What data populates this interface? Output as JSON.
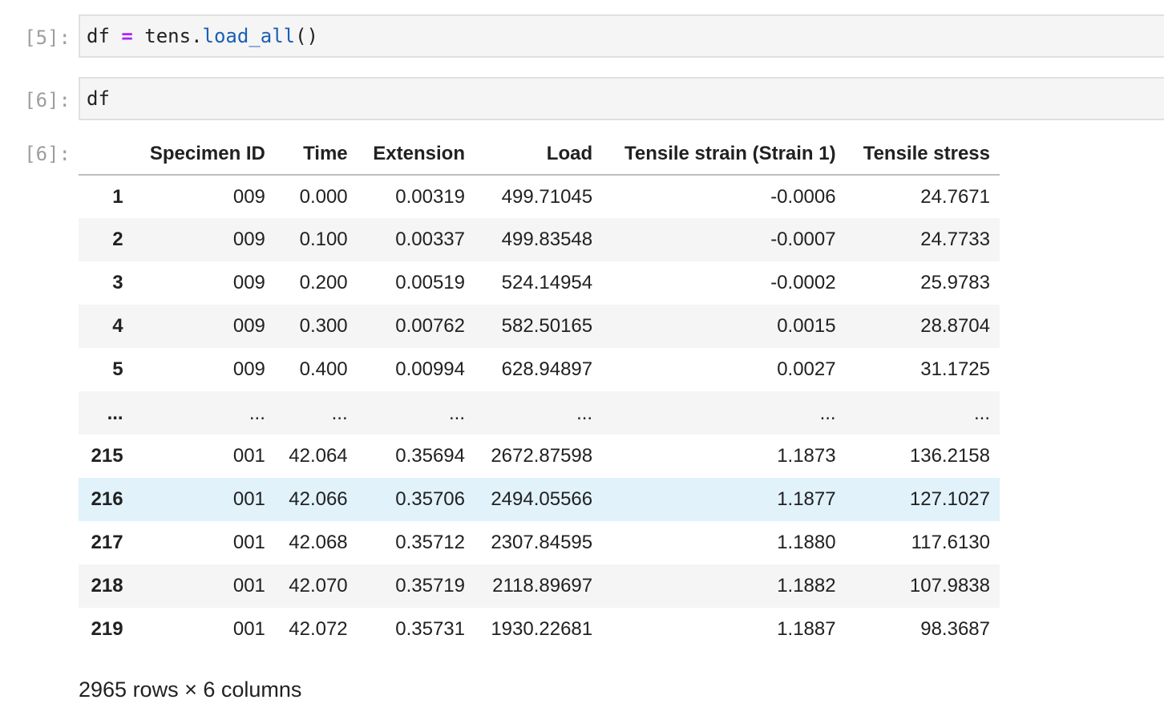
{
  "cells": [
    {
      "prompt": "[5]:",
      "code": {
        "var": "df",
        "op": "=",
        "obj": "tens.",
        "fn": "load_all",
        "paren": "()"
      }
    },
    {
      "prompt": "[6]:",
      "code": {
        "var": "df"
      }
    }
  ],
  "output": {
    "prompt": "[6]:",
    "columns": [
      "",
      "Specimen ID",
      "Time",
      "Extension",
      "Load",
      "Tensile strain (Strain 1)",
      "Tensile stress"
    ],
    "rows": [
      {
        "index": "1",
        "cells": [
          "009",
          "0.000",
          "0.00319",
          "499.71045",
          "-0.0006",
          "24.7671"
        ]
      },
      {
        "index": "2",
        "cells": [
          "009",
          "0.100",
          "0.00337",
          "499.83548",
          "-0.0007",
          "24.7733"
        ]
      },
      {
        "index": "3",
        "cells": [
          "009",
          "0.200",
          "0.00519",
          "524.14954",
          "-0.0002",
          "25.9783"
        ]
      },
      {
        "index": "4",
        "cells": [
          "009",
          "0.300",
          "0.00762",
          "582.50165",
          "0.0015",
          "28.8704"
        ]
      },
      {
        "index": "5",
        "cells": [
          "009",
          "0.400",
          "0.00994",
          "628.94897",
          "0.0027",
          "31.1725"
        ]
      },
      {
        "index": "...",
        "cells": [
          "...",
          "...",
          "...",
          "...",
          "...",
          "..."
        ]
      },
      {
        "index": "215",
        "cells": [
          "001",
          "42.064",
          "0.35694",
          "2672.87598",
          "1.1873",
          "136.2158"
        ]
      },
      {
        "index": "216",
        "cells": [
          "001",
          "42.066",
          "0.35706",
          "2494.05566",
          "1.1877",
          "127.1027"
        ]
      },
      {
        "index": "217",
        "cells": [
          "001",
          "42.068",
          "0.35712",
          "2307.84595",
          "1.1880",
          "117.6130"
        ]
      },
      {
        "index": "218",
        "cells": [
          "001",
          "42.070",
          "0.35719",
          "2118.89697",
          "1.1882",
          "107.9838"
        ]
      },
      {
        "index": "219",
        "cells": [
          "001",
          "42.072",
          "0.35731",
          "1930.22681",
          "1.1887",
          "98.3687"
        ]
      }
    ],
    "summary": "2965 rows × 6 columns"
  },
  "colors": {
    "prompt": "#9e9e9e",
    "input_bg": "#f5f5f5",
    "input_border": "#e0e0e0",
    "operator": "#aa22ff",
    "function": "#1a5fb4",
    "row_stripe": "#f5f5f5",
    "row_hover": "#e1f2fb"
  }
}
